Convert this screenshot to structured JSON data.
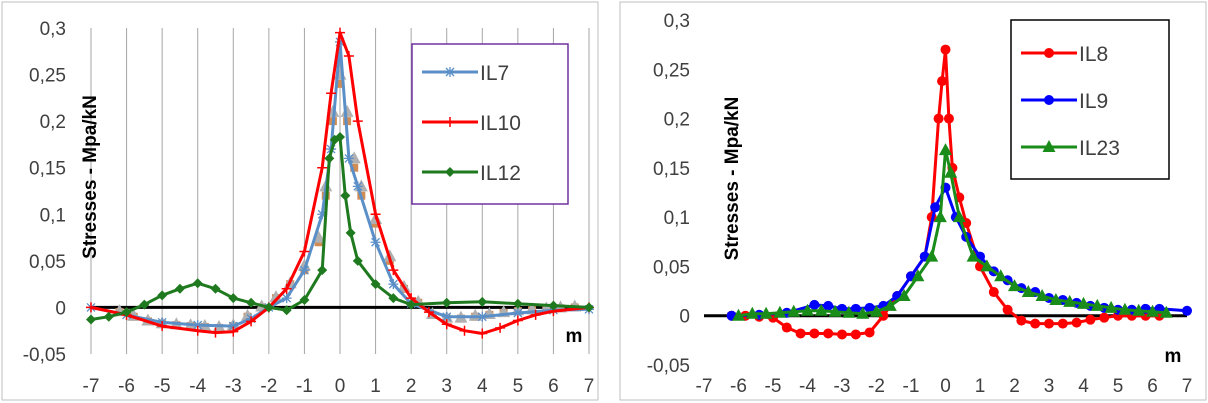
{
  "chart_data": [
    {
      "type": "line",
      "title": "",
      "xlabel": "m",
      "ylabel": "Stresses - Mpa/kN",
      "xlim": [
        -7,
        7
      ],
      "ylim": [
        -0.05,
        0.3
      ],
      "x_ticks": [
        "-7",
        "-6",
        "-5",
        "-4",
        "-3",
        "-2",
        "-1",
        "0",
        "1",
        "2",
        "3",
        "4",
        "5",
        "6",
        "7"
      ],
      "y_ticks": [
        "-0,05",
        "0",
        "0,05",
        "0,1",
        "0,15",
        "0,2",
        "0,25",
        "0,3"
      ],
      "grid": "vertical",
      "legend": "top-right",
      "series": [
        {
          "name": "IL7",
          "color": "#5b8fc7",
          "marker": "star",
          "x": [
            -7,
            -6,
            -5,
            -4,
            -3,
            -2.5,
            -2,
            -1.5,
            -1,
            -0.5,
            -0.25,
            0,
            0.25,
            0.5,
            1,
            1.5,
            2,
            3,
            4,
            5,
            6,
            7
          ],
          "y": [
            0,
            -0.008,
            -0.016,
            -0.019,
            -0.02,
            -0.012,
            0,
            0.01,
            0.04,
            0.1,
            0.17,
            0.285,
            0.16,
            0.13,
            0.07,
            0.025,
            0.004,
            -0.01,
            -0.01,
            -0.006,
            -0.003,
            -0.002
          ]
        },
        {
          "name": "IL10",
          "color": "#ff0000",
          "marker": "plus",
          "x": [
            -7,
            -6,
            -5,
            -4,
            -3.5,
            -3,
            -2.5,
            -2,
            -1.5,
            -1,
            -0.5,
            -0.25,
            0,
            0.25,
            0.5,
            1,
            1.5,
            2,
            2.5,
            3,
            3.5,
            4,
            4.5,
            5,
            5.5,
            6,
            7
          ],
          "y": [
            0,
            -0.008,
            -0.02,
            -0.025,
            -0.027,
            -0.026,
            -0.015,
            0,
            0.02,
            0.06,
            0.15,
            0.23,
            0.295,
            0.27,
            0.2,
            0.1,
            0.04,
            0.01,
            -0.005,
            -0.018,
            -0.025,
            -0.028,
            -0.022,
            -0.014,
            -0.008,
            -0.004,
            0
          ]
        },
        {
          "name": "IL12",
          "color": "#1f7a1f",
          "marker": "diamond",
          "x": [
            -7,
            -6.5,
            -6,
            -5.5,
            -5,
            -4.5,
            -4,
            -3.5,
            -3,
            -2.5,
            -2,
            -1.5,
            -1,
            -0.5,
            -0.3,
            -0.15,
            0,
            0.15,
            0.3,
            0.5,
            1,
            1.5,
            2,
            3,
            4,
            5,
            6,
            7
          ],
          "y": [
            -0.013,
            -0.01,
            -0.005,
            0.003,
            0.013,
            0.02,
            0.026,
            0.02,
            0.01,
            0.005,
            0,
            -0.003,
            0.008,
            0.04,
            0.16,
            0.18,
            0.183,
            0.12,
            0.08,
            0.05,
            0.025,
            0.01,
            0.003,
            0.005,
            0.006,
            0.004,
            0.002,
            0
          ]
        },
        {
          "name": "",
          "color": "#d08c55",
          "marker": "square",
          "x": [
            -6.2,
            -5.8,
            -5.4,
            -5,
            -4.6,
            -4.2,
            -3.8,
            -3.4,
            -3,
            -2.6,
            -2.2,
            -1.8,
            -1.4,
            -1,
            -0.6,
            -0.4,
            -0.2,
            0,
            0.2,
            0.4,
            0.6,
            1,
            1.4,
            1.8,
            2.2,
            2.6,
            3,
            3.4,
            3.8,
            4.2,
            4.6,
            5,
            5.4,
            5.8,
            6.2,
            6.6
          ],
          "y": [
            -0.005,
            -0.01,
            -0.015,
            -0.018,
            -0.019,
            -0.02,
            -0.021,
            -0.022,
            -0.02,
            -0.01,
            0,
            0.01,
            0.025,
            0.04,
            0.07,
            0.12,
            0.2,
            0.24,
            0.2,
            0.15,
            0.12,
            0.09,
            0.05,
            0.02,
            0.005,
            -0.008,
            -0.012,
            -0.012,
            -0.01,
            -0.008,
            -0.006,
            -0.004,
            -0.003,
            -0.002,
            -0.001,
            0
          ]
        },
        {
          "name": "",
          "color": "#b0b0b0",
          "marker": "triangle",
          "x": [
            -6.2,
            -5.8,
            -5.4,
            -5,
            -4.6,
            -4.2,
            -3.8,
            -3.4,
            -3,
            -2.6,
            -2.2,
            -1.8,
            -1.4,
            -1,
            -0.6,
            -0.4,
            -0.2,
            0,
            0.2,
            0.4,
            0.6,
            1,
            1.4,
            1.8,
            2.2,
            2.6,
            3,
            3.4,
            3.8,
            4.2,
            4.6,
            5,
            5.4,
            5.8,
            6.2,
            6.6
          ],
          "y": [
            -0.004,
            -0.009,
            -0.014,
            -0.017,
            -0.018,
            -0.019,
            -0.02,
            -0.021,
            -0.019,
            -0.009,
            0.001,
            0.011,
            0.026,
            0.045,
            0.075,
            0.13,
            0.21,
            0.25,
            0.21,
            0.16,
            0.13,
            0.095,
            0.055,
            0.022,
            0.006,
            -0.007,
            -0.011,
            -0.011,
            -0.009,
            -0.007,
            -0.005,
            -0.003,
            -0.002,
            -0.001,
            0,
            0.001
          ]
        }
      ]
    },
    {
      "type": "line",
      "title": "",
      "xlabel": "m",
      "ylabel": "Stresses - Mpa/kN",
      "xlim": [
        -7,
        7
      ],
      "ylim": [
        -0.05,
        0.3
      ],
      "x_ticks": [
        "-7",
        "-6",
        "-5",
        "-4",
        "-3",
        "-2",
        "-1",
        "0",
        "1",
        "2",
        "3",
        "4",
        "5",
        "6",
        "7"
      ],
      "y_ticks": [
        "-0,05",
        "0",
        "0,05",
        "0,1",
        "0,15",
        "0,2",
        "0,25",
        "0,3"
      ],
      "grid": "none",
      "legend": "top-right",
      "series": [
        {
          "name": "IL8",
          "color": "#ff0000",
          "marker": "circle",
          "x": [
            -6.2,
            -5.8,
            -5.4,
            -5,
            -4.6,
            -4.2,
            -3.8,
            -3.4,
            -3,
            -2.6,
            -2.2,
            -1.8,
            -1.4,
            -1,
            -0.6,
            -0.4,
            -0.2,
            -0.1,
            0,
            0.1,
            0.2,
            0.4,
            0.6,
            1,
            1.4,
            1.8,
            2.2,
            2.6,
            3,
            3.4,
            3.8,
            4.2,
            4.6,
            5,
            5.4,
            5.8,
            6.2
          ],
          "y": [
            0,
            0,
            -0.001,
            -0.002,
            -0.012,
            -0.018,
            -0.018,
            -0.018,
            -0.019,
            -0.019,
            -0.017,
            0,
            0.02,
            0.04,
            0.06,
            0.1,
            0.2,
            0.238,
            0.27,
            0.2,
            0.15,
            0.12,
            0.094,
            0.05,
            0.024,
            0.006,
            -0.005,
            -0.008,
            -0.008,
            -0.008,
            -0.007,
            -0.004,
            -0.002,
            0,
            0,
            0,
            0
          ]
        },
        {
          "name": "IL9",
          "color": "#0000ff",
          "marker": "circle",
          "x": [
            -6.2,
            -5.4,
            -4.6,
            -3.8,
            -3.4,
            -3,
            -2.6,
            -2.2,
            -1.8,
            -1.4,
            -1,
            -0.6,
            -0.3,
            0,
            0.3,
            0.6,
            1,
            1.4,
            1.8,
            2.2,
            2.6,
            3,
            3.4,
            3.8,
            4.2,
            4.6,
            5,
            5.4,
            5.8,
            6.2,
            7
          ],
          "y": [
            0,
            0.001,
            0.003,
            0.011,
            0.01,
            0.007,
            0.007,
            0.008,
            0.01,
            0.02,
            0.04,
            0.06,
            0.11,
            0.13,
            0.1,
            0.08,
            0.06,
            0.045,
            0.036,
            0.028,
            0.024,
            0.018,
            0.016,
            0.013,
            0.01,
            0.008,
            0.006,
            0.006,
            0.007,
            0.007,
            0.005
          ]
        },
        {
          "name": "IL23",
          "color": "#1a8c1a",
          "marker": "triangle",
          "x": [
            -6,
            -5.6,
            -5.2,
            -4.8,
            -4.4,
            -4,
            -3.6,
            -3.2,
            -2.8,
            -2.4,
            -2,
            -1.6,
            -1.2,
            -0.8,
            -0.4,
            -0.15,
            0,
            0.15,
            0.4,
            0.8,
            1.2,
            1.6,
            2,
            2.4,
            2.8,
            3.2,
            3.6,
            4,
            4.4,
            4.8,
            5.2,
            5.6,
            6,
            6.4
          ],
          "y": [
            0,
            0.002,
            0.002,
            0.003,
            0.004,
            0.005,
            0.005,
            0.004,
            0.003,
            0.002,
            0.004,
            0.01,
            0.02,
            0.04,
            0.06,
            0.1,
            0.168,
            0.145,
            0.1,
            0.06,
            0.05,
            0.04,
            0.03,
            0.024,
            0.02,
            0.016,
            0.014,
            0.012,
            0.01,
            0.008,
            0.006,
            0.005,
            0.004,
            0.003
          ]
        }
      ]
    }
  ]
}
